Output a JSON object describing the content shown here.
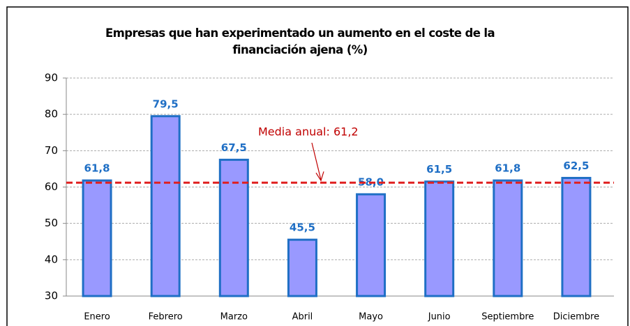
{
  "chart_data": {
    "type": "bar",
    "title": "Empresas que han experimentado un aumento en el coste de la financiación ajena (%)",
    "categories": [
      "Enero",
      "Febrero",
      "Marzo",
      "Abril",
      "Mayo",
      "Junio",
      "Septiembre",
      "Diciembre"
    ],
    "values": [
      61.8,
      79.5,
      67.5,
      45.5,
      58.0,
      61.5,
      61.8,
      62.5
    ],
    "value_labels": [
      "61,8",
      "79,5",
      "67,5",
      "45,5",
      "58,0",
      "61,5",
      "61,8",
      "62,5"
    ],
    "color": "#9999ff",
    "ylim": [
      30,
      90
    ],
    "yticks": [
      30,
      40,
      50,
      60,
      70,
      80,
      90
    ],
    "grid": true,
    "mean_line": {
      "value": 61.2,
      "label": "Media anual: 61,2",
      "color": "#e02020"
    }
  }
}
